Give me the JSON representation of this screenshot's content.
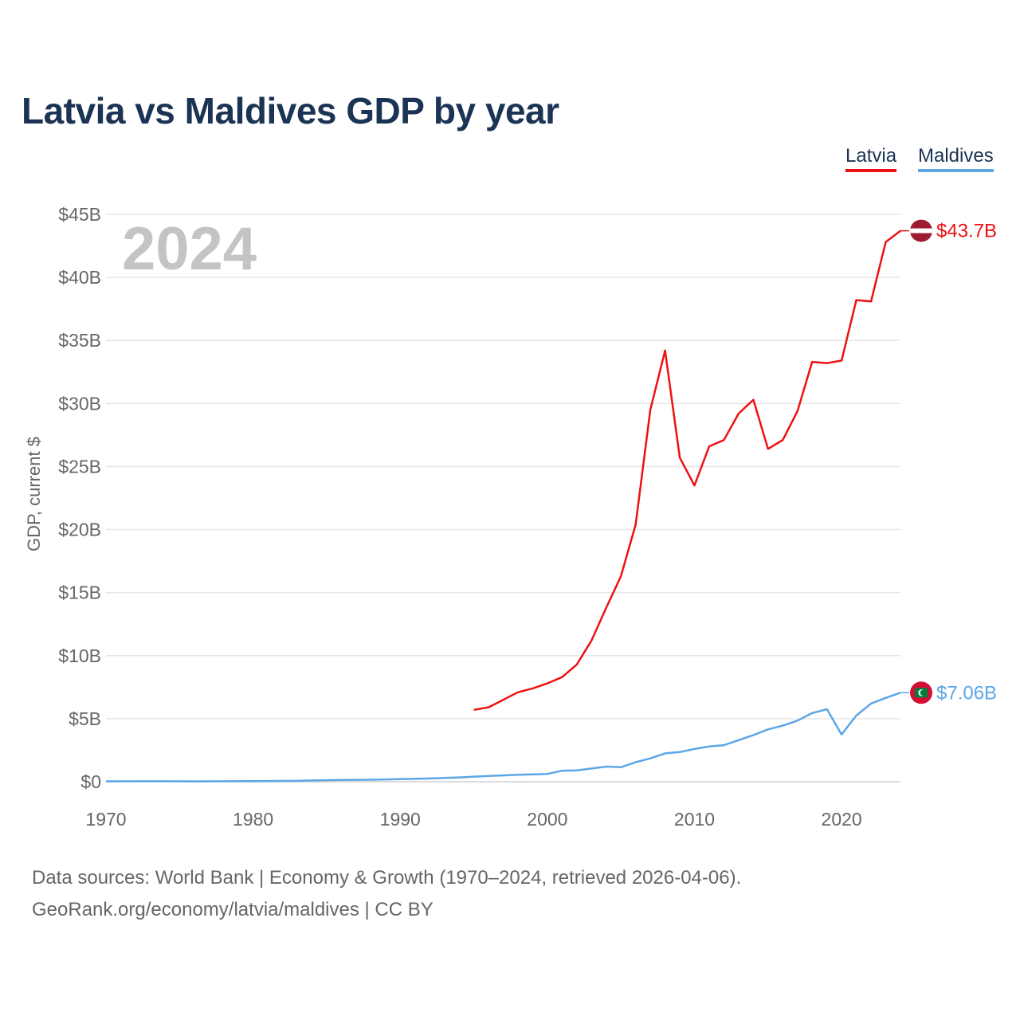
{
  "title": "Latvia vs Maldives GDP by year",
  "legend": [
    {
      "label": "Latvia",
      "color": "#ee1111"
    },
    {
      "label": "Maldives",
      "color": "#5da6e6"
    }
  ],
  "year_watermark": "2024",
  "footer": {
    "line1": "Data sources: World Bank | Economy & Growth (1970–2024, retrieved 2026-04-06).",
    "line2": "GeoRank.org/economy/latvia/maldives | CC BY"
  },
  "chart_data": {
    "type": "line",
    "title": "Latvia vs Maldives GDP by year",
    "xlabel": "",
    "ylabel": "GDP, current $",
    "xlim": [
      1970,
      2024
    ],
    "ylim": [
      0,
      45
    ],
    "y_unit": "billion USD",
    "x_ticks": [
      1970,
      1980,
      1990,
      2000,
      2010,
      2020
    ],
    "y_ticks": [
      {
        "value": 0,
        "label": "$0"
      },
      {
        "value": 5,
        "label": "$5B"
      },
      {
        "value": 10,
        "label": "$10B"
      },
      {
        "value": 15,
        "label": "$15B"
      },
      {
        "value": 20,
        "label": "$20B"
      },
      {
        "value": 25,
        "label": "$25B"
      },
      {
        "value": 30,
        "label": "$30B"
      },
      {
        "value": 35,
        "label": "$35B"
      },
      {
        "value": 40,
        "label": "$40B"
      },
      {
        "value": 45,
        "label": "$45B"
      }
    ],
    "grid": true,
    "legend_position": "top-right",
    "series": [
      {
        "name": "Latvia",
        "color": "#ee1111",
        "end_label": "$43.7B",
        "flag_icon": "latvia-flag-icon",
        "x": [
          1995,
          1996,
          1997,
          1998,
          1999,
          2000,
          2001,
          2002,
          2003,
          2004,
          2005,
          2006,
          2007,
          2008,
          2009,
          2010,
          2011,
          2012,
          2013,
          2014,
          2015,
          2016,
          2017,
          2018,
          2019,
          2020,
          2021,
          2022,
          2023,
          2024
        ],
        "values": [
          5.7,
          5.9,
          6.5,
          7.1,
          7.4,
          7.8,
          8.3,
          9.3,
          11.2,
          13.8,
          16.3,
          20.4,
          29.5,
          34.2,
          25.7,
          23.5,
          26.6,
          27.1,
          29.2,
          30.3,
          26.4,
          27.1,
          29.4,
          33.3,
          33.2,
          33.4,
          38.2,
          38.1,
          42.8,
          43.7
        ]
      },
      {
        "name": "Maldives",
        "color": "#5da6e6",
        "end_label": "$7.06B",
        "flag_icon": "maldives-flag-icon",
        "x": [
          1970,
          1972,
          1974,
          1976,
          1978,
          1980,
          1983,
          1984,
          1986,
          1988,
          1990,
          1992,
          1994,
          1996,
          1998,
          2000,
          2001,
          2002,
          2003,
          2004,
          2005,
          2006,
          2007,
          2008,
          2009,
          2010,
          2011,
          2012,
          2013,
          2014,
          2015,
          2016,
          2017,
          2018,
          2019,
          2020,
          2021,
          2022,
          2023,
          2024
        ],
        "values": [
          0.03,
          0.04,
          0.04,
          0.03,
          0.04,
          0.05,
          0.07,
          0.1,
          0.14,
          0.16,
          0.21,
          0.26,
          0.34,
          0.46,
          0.55,
          0.62,
          0.87,
          0.9,
          1.05,
          1.2,
          1.15,
          1.55,
          1.85,
          2.25,
          2.35,
          2.6,
          2.8,
          2.9,
          3.3,
          3.7,
          4.15,
          4.45,
          4.85,
          5.45,
          5.75,
          3.75,
          5.25,
          6.2,
          6.65,
          7.06
        ]
      }
    ]
  }
}
